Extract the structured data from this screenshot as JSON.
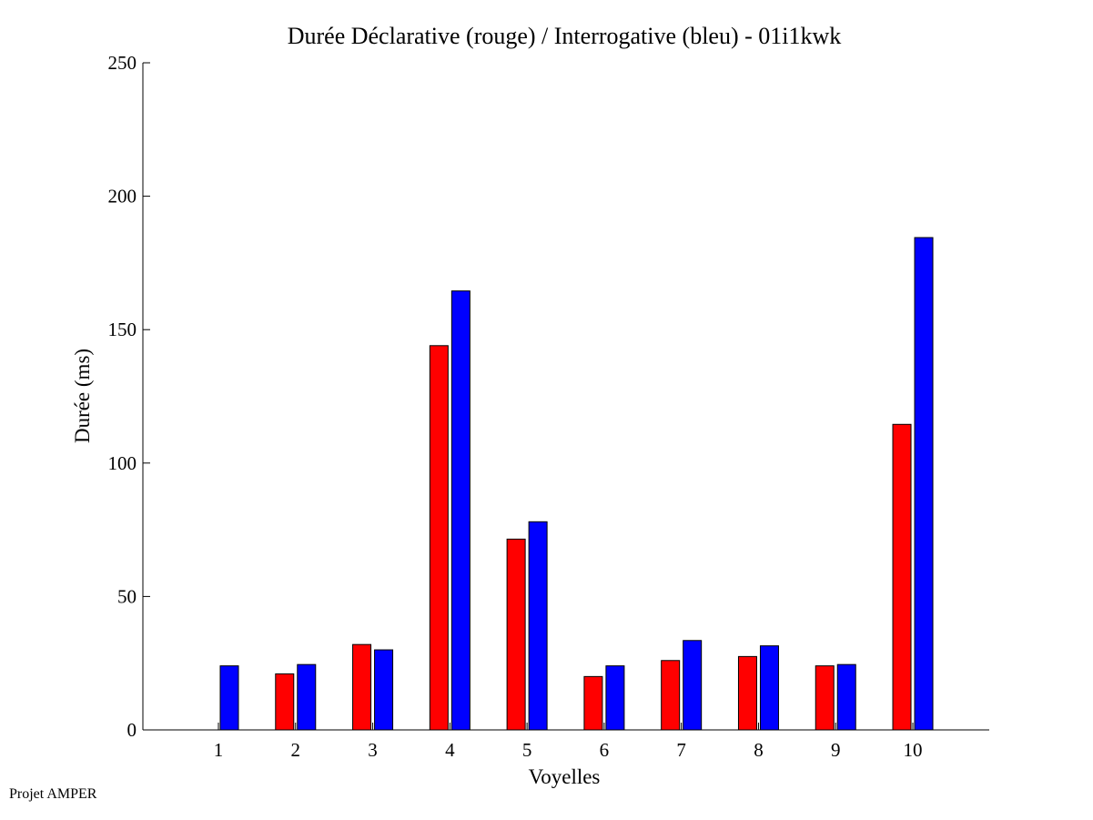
{
  "footer": "Projet AMPER",
  "chart_data": {
    "type": "bar",
    "title": "Durée Déclarative (rouge) / Interrogative (bleu) - 01i1kwk",
    "xlabel": "Voyelles",
    "ylabel": "Durée (ms)",
    "ylim": [
      0,
      250
    ],
    "yticks": [
      0,
      50,
      100,
      150,
      200,
      250
    ],
    "categories": [
      "1",
      "2",
      "3",
      "4",
      "5",
      "6",
      "7",
      "8",
      "9",
      "10"
    ],
    "grid": false,
    "series": [
      {
        "color": "#ff0000",
        "values": [
          0,
          21,
          32,
          144,
          71.5,
          20,
          26,
          27.5,
          24,
          114.5
        ]
      },
      {
        "color": "#0000ff",
        "values": [
          24,
          24.5,
          30,
          164.5,
          78,
          24,
          33.5,
          31.5,
          24.5,
          184.5
        ]
      }
    ]
  }
}
